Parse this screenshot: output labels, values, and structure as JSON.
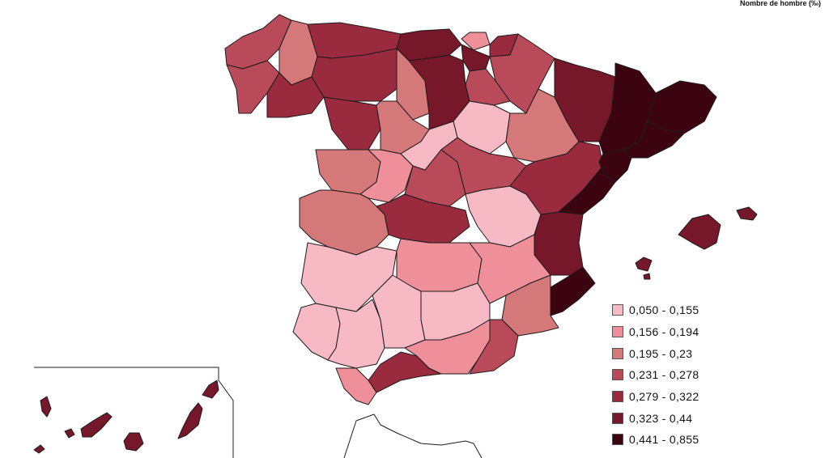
{
  "map": {
    "title": "Nombre de hombre (‰)",
    "legend": [
      {
        "label": "0,050 - 0,155",
        "color": "#f7b9c4"
      },
      {
        "label": "0,156 - 0,194",
        "color": "#ee8f99"
      },
      {
        "label": "0,195 - 0,23",
        "color": "#d4787a"
      },
      {
        "label": "0,231 - 0,278",
        "color": "#b84a5a"
      },
      {
        "label": "0,279 - 0,322",
        "color": "#9a2a3e"
      },
      {
        "label": "0,323 - 0,44",
        "color": "#76182a"
      },
      {
        "label": "0,441 - 0,855",
        "color": "#3c0410"
      }
    ]
  }
}
